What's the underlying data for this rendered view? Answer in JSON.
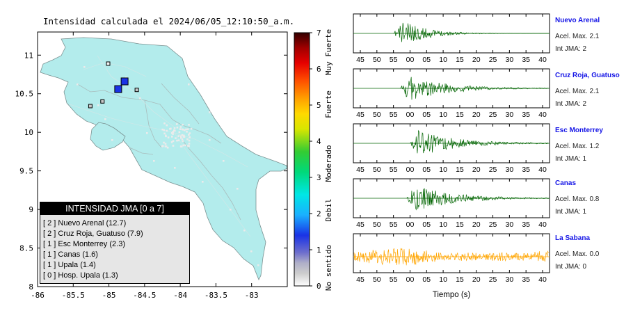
{
  "map": {
    "title": "Intensidad calculada el 2024/06/05_12:10:50_a.m.",
    "x_ticks": [
      "-86",
      "-85.5",
      "-85",
      "-84.5",
      "-84",
      "-83.5",
      "-83"
    ],
    "y_ticks": [
      "11",
      "10.5",
      "10",
      "9.5",
      "9",
      "8.5",
      "8"
    ],
    "xlim": [
      -86,
      -82.5
    ],
    "ylim": [
      8,
      11.3
    ]
  },
  "colorbar": {
    "ticks": [
      "0",
      "1",
      "2",
      "3",
      "4",
      "5",
      "6",
      "7"
    ],
    "range": [
      0,
      7
    ],
    "categories": [
      "No sentido",
      "Debil",
      "Moderado",
      "Fuerte",
      "Muy Fuerte"
    ]
  },
  "legend": {
    "title": "INTENSIDAD JMA [0 a 7]",
    "rows": [
      "[ 2 ]  Nuevo Arenal (12.7)",
      "[ 2 ]  Cruz Roja, Guatuso (7.9)",
      "[ 1 ]  Esc Monterrey (2.3)",
      "[ 1 ]  Canas (1.6)",
      "[ 1 ]  Upala (1.4)",
      "[ 0 ]  Hosp. Upala (1.3)"
    ]
  },
  "chart_data": [
    {
      "type": "scatter",
      "xlim": [
        -86,
        -82.5
      ],
      "ylim": [
        8,
        11.3
      ],
      "points": [
        {
          "lon": -84.78,
          "lat": 10.66,
          "jma": 2,
          "color": "#1a33e6"
        },
        {
          "lon": -84.87,
          "lat": 10.56,
          "jma": 2,
          "color": "#1a33e6"
        },
        {
          "lon": -84.61,
          "lat": 10.55,
          "jma": 1,
          "color": "#c8c8c8"
        },
        {
          "lon": -85.09,
          "lat": 10.4,
          "jma": 1,
          "color": "#c8c8c8"
        },
        {
          "lon": -85.26,
          "lat": 10.34,
          "jma": 1,
          "color": "#c8c8c8"
        },
        {
          "lon": -85.01,
          "lat": 10.89,
          "jma": 0,
          "color": "#f2f2f2"
        }
      ]
    },
    {
      "type": "line",
      "xlabel": "Tiempo (s)",
      "x_ticks": [
        "45",
        "50",
        "55",
        "00",
        "05",
        "10",
        "15",
        "20",
        "25",
        "30",
        "35",
        "40"
      ],
      "series": [
        {
          "name": "Nuevo Arenal",
          "acel": "Acel. Max. 2.1",
          "jma": "Int JMA: 2",
          "onset": "55",
          "color": "#006400"
        },
        {
          "name": "Cruz Roja, Guatuso",
          "acel": "Acel. Max. 2.1",
          "jma": "Int JMA: 2",
          "onset": "57",
          "color": "#006400"
        },
        {
          "name": "Esc Monterrey",
          "acel": "Acel. Max. 1.2",
          "jma": "Int JMA: 1",
          "onset": "00",
          "color": "#006400"
        },
        {
          "name": "Canas",
          "acel": "Acel. Max. 0.8",
          "jma": "Int JMA: 1",
          "onset": "59",
          "color": "#006400"
        },
        {
          "name": "La Sabana",
          "acel": "Acel. Max. 0.0",
          "jma": "Int JMA: 0",
          "onset": "45",
          "color": "#ffa500"
        }
      ]
    }
  ]
}
